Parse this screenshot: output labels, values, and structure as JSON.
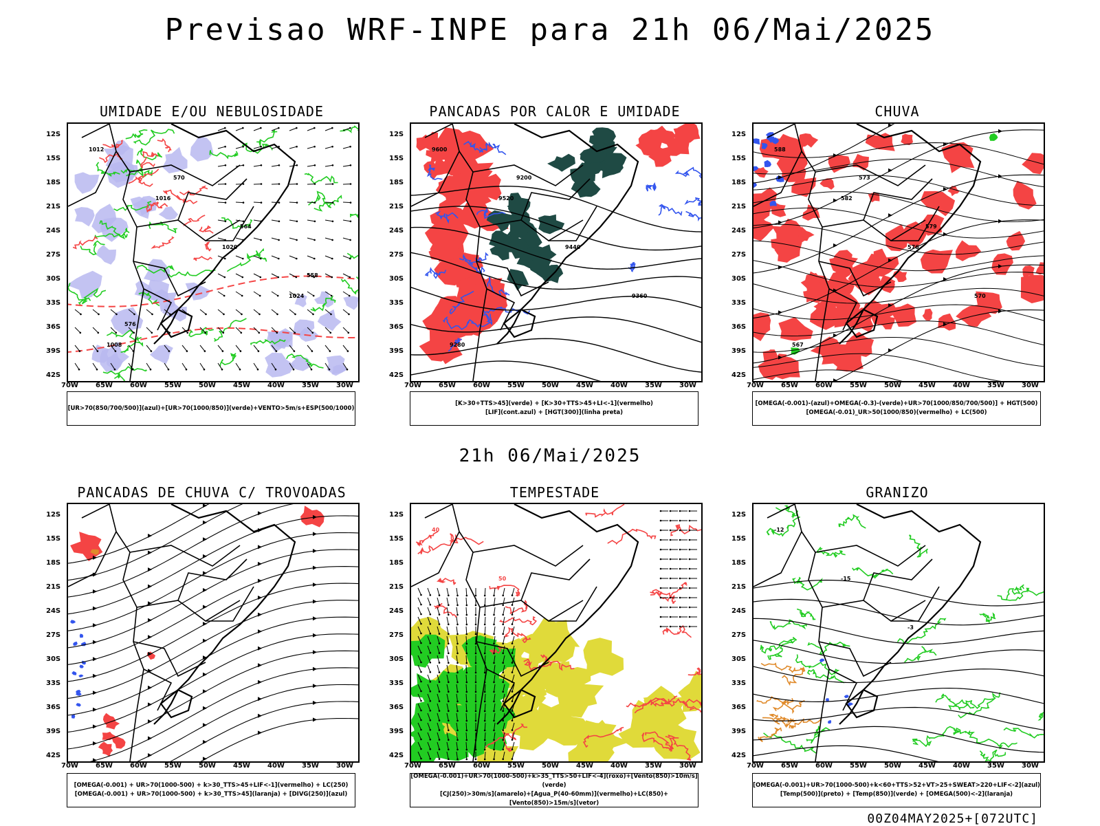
{
  "page": {
    "title": "Previsao WRF-INPE  para 21h 06/Mai/2025",
    "middle_title": "21h 06/Mai/2025",
    "run_label": "00Z04MAY2025+[072UTC]"
  },
  "axes": {
    "latitudes": [
      "12S",
      "15S",
      "18S",
      "21S",
      "24S",
      "27S",
      "30S",
      "33S",
      "36S",
      "39S",
      "42S"
    ],
    "longitudes": [
      "70W",
      "65W",
      "60W",
      "55W",
      "50W",
      "45W",
      "40W",
      "35W",
      "30W"
    ]
  },
  "colors": {
    "red": "#f44444",
    "green": "#22cc22",
    "blue": "#3355ee",
    "lavender": "#b8b8f0",
    "darkteal": "#1f4a44",
    "yellow": "#e0da3a",
    "orange": "#e08a2a",
    "black": "#000000"
  },
  "panels": [
    {
      "title": "UMIDADE E/OU NEBULOSIDADE",
      "legend": [
        "[UR>70(850/700/500)](azul)+[UR>70(1000/850)](verde)+VENTO>5m/s+ESP(500/1000)"
      ],
      "contour_labels": [
        "1012",
        "1016",
        "1020",
        "1024",
        "1008",
        "570",
        "564",
        "558",
        "576"
      ]
    },
    {
      "title": "PANCADAS POR CALOR E UMIDADE",
      "legend": [
        "[K>30+TTS>45](verde) + [K>30+TTS>45+LI<-1](vermelho)",
        "[LIF](cont.azul) + [HGT(300)](linha preta)"
      ],
      "contour_labels": [
        "9600",
        "9520",
        "9440",
        "9360",
        "9280",
        "9200"
      ]
    },
    {
      "title": "CHUVA",
      "legend": [
        "[OMEGA(-0.001)-(azul)+OMEGA(-0.3)-(verde)+UR>70(1000/850/700/500)] + HGT(500)",
        "[OMEGA(-0.01)_UR>50(1000/850)(vermelho) + LC(500)"
      ],
      "contour_labels": [
        "588",
        "582",
        "576",
        "570",
        "567",
        "573",
        "579"
      ]
    },
    {
      "title": "PANCADAS DE CHUVA C/ TROVOADAS",
      "legend": [
        "[OMEGA(-0.001) + UR>70(1000-500) + k>30_TTS>45+LIF<-1](vermelho) + LC(250)",
        "[OMEGA(-0.001) + UR>70(1000-500) + k>30_TTS>45](laranja) + [DIVG(250)](azul)"
      ],
      "contour_labels": []
    },
    {
      "title": "TEMPESTADE",
      "legend": [
        "[OMEGA(-0.001)+UR>70(1000-500)+k>35_TTS>50+LIF<-4](roxo)+[Vento(850)>10m/s](verde)",
        "[CJ(250)>30m/s](amarelo)+[Agua_P(40-60mm)](vermelho)+LC(850)+[Vento(850)>15m/s](vetor)"
      ],
      "contour_labels": [
        "40",
        "50"
      ]
    },
    {
      "title": "GRANIZO",
      "legend": [
        "[OMEGA(-0.001)+UR>70(1000-500)+k<60+TTS>52+VT>25+SWEAT>220+LIF<-2](azul)",
        "[Temp(500)](preto) + [Temp(850)](verde) + [OMEGA(500)<-2](laranja)"
      ],
      "contour_labels": [
        "-12",
        "-15",
        "-3"
      ]
    }
  ]
}
